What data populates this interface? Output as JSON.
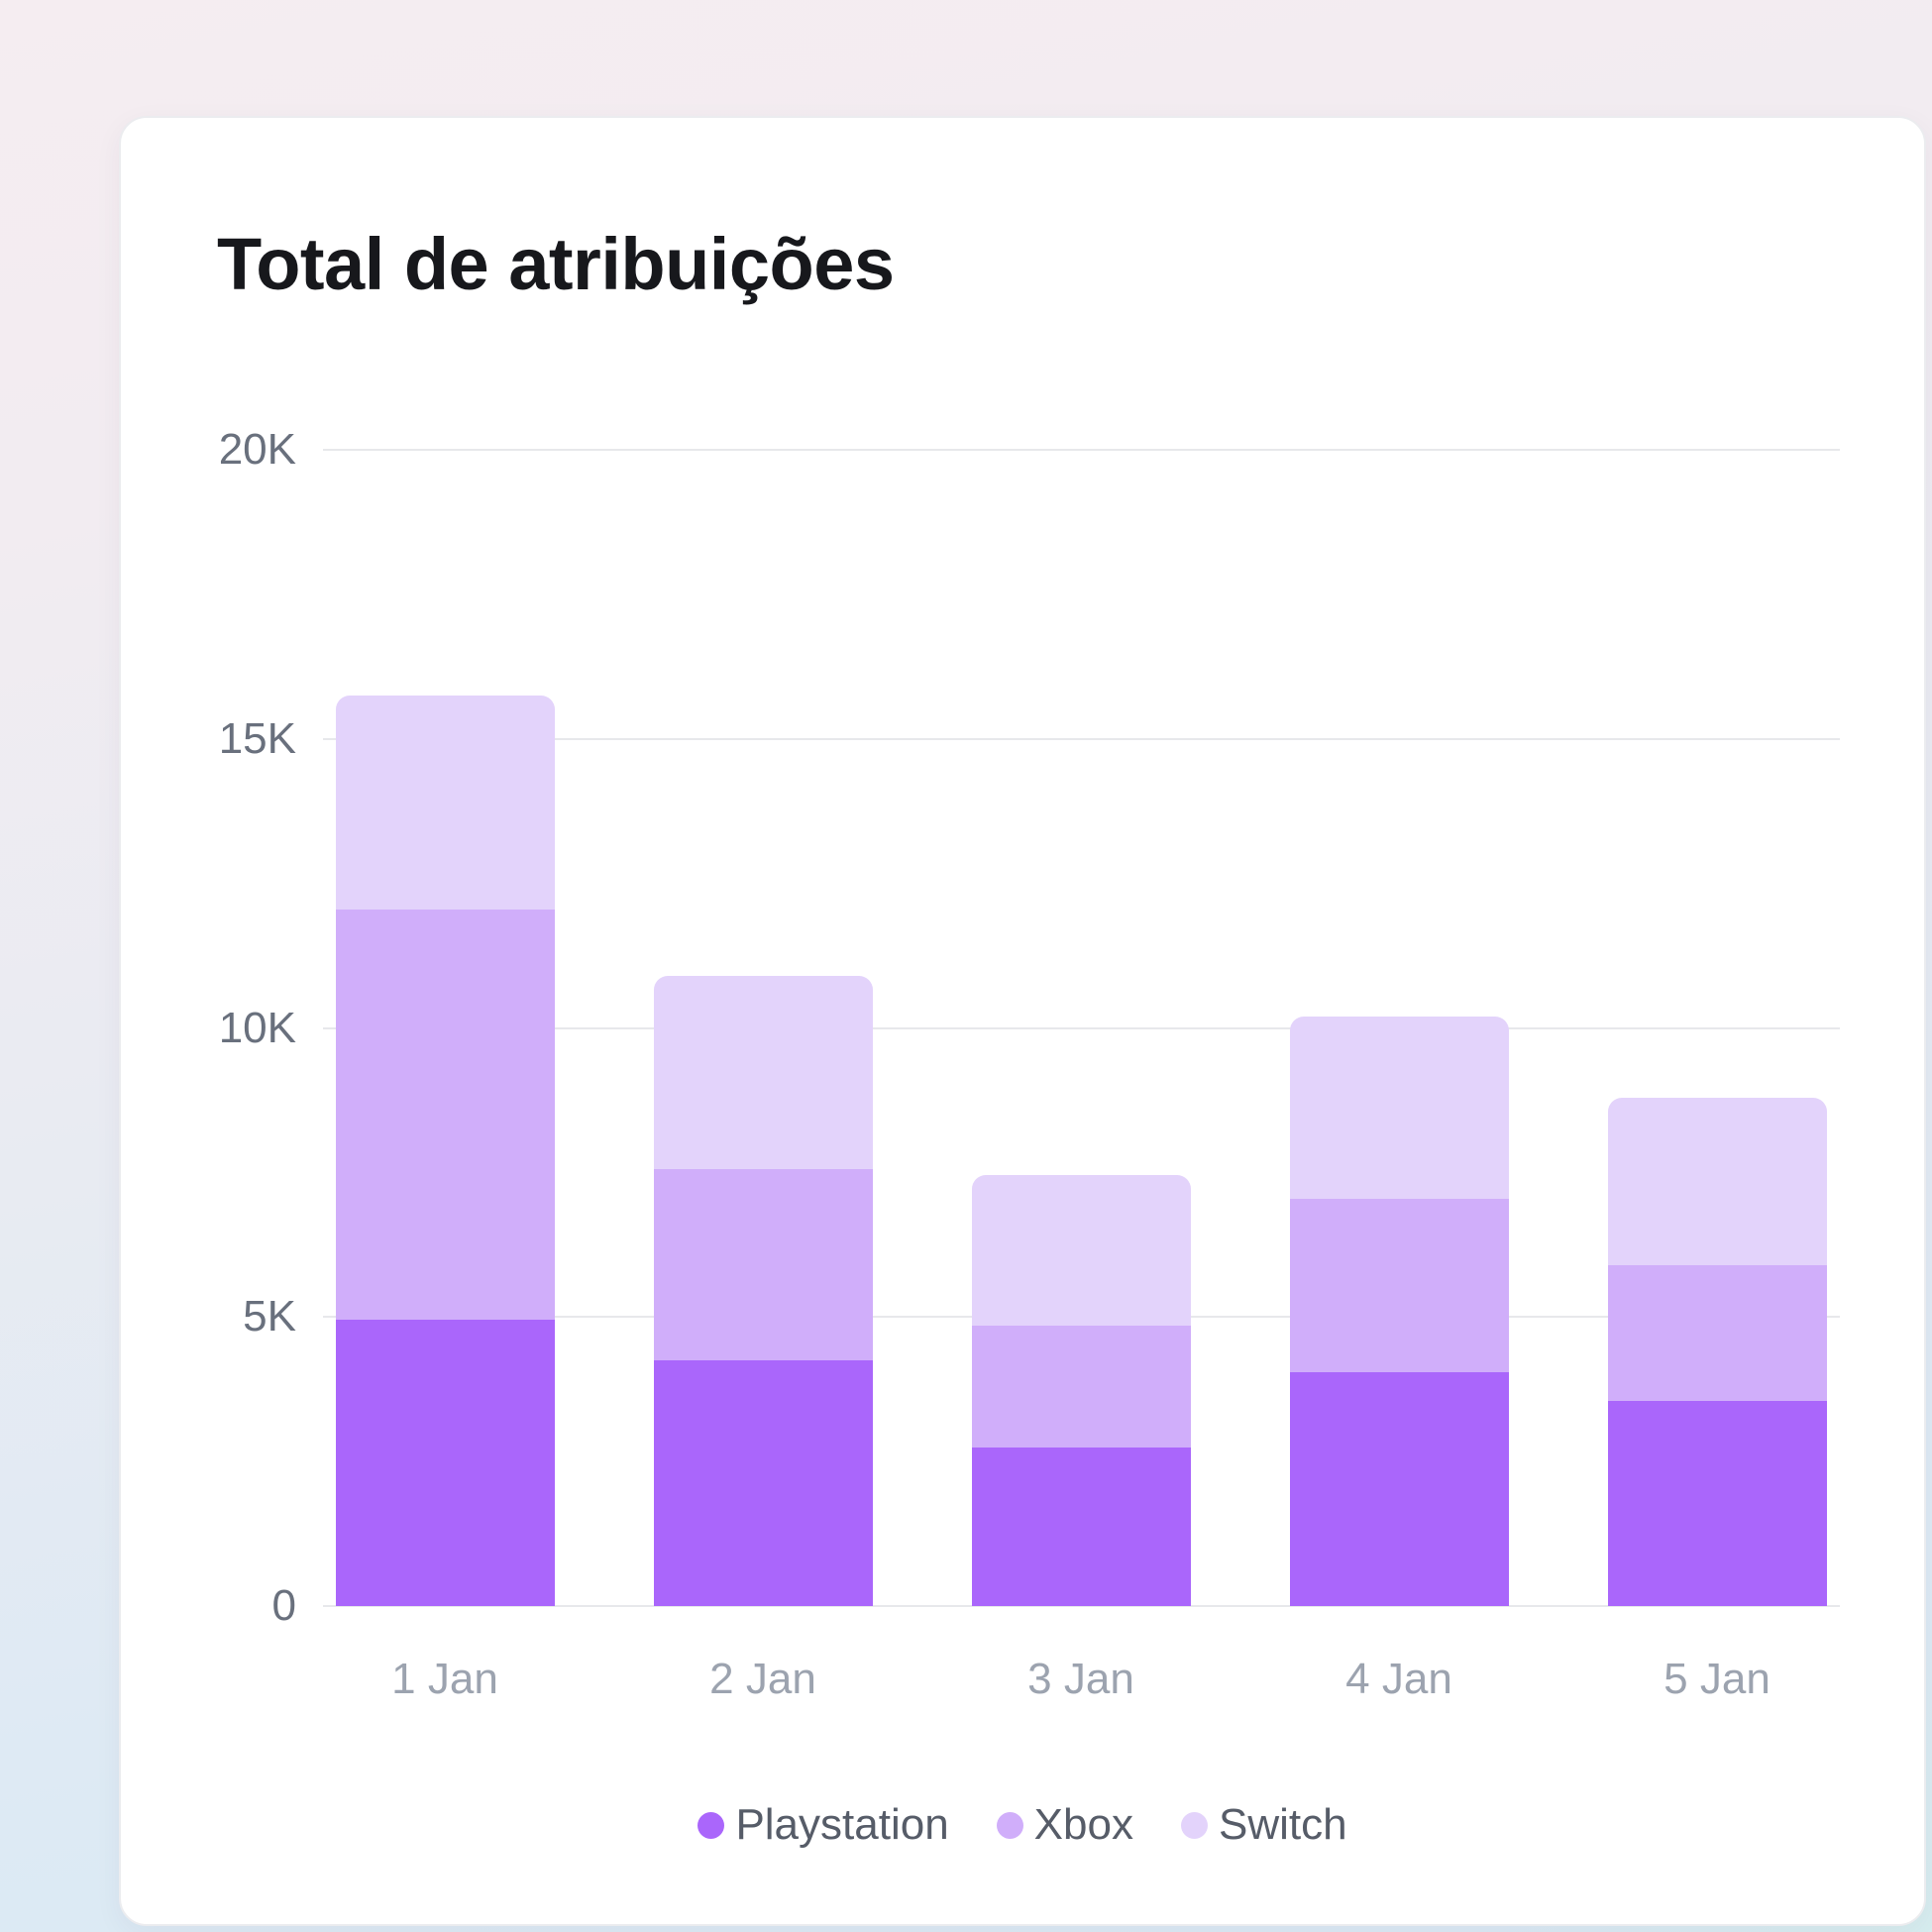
{
  "chart_data": {
    "type": "bar",
    "stacked": true,
    "title": "Total de atribuições",
    "categories": [
      "1 Jan",
      "2 Jan",
      "3 Jan",
      "4 Jan",
      "5 Jan"
    ],
    "series": [
      {
        "name": "Playstation",
        "color": "#aa66fb",
        "values": [
          4950,
          4250,
          2750,
          4050,
          3550
        ]
      },
      {
        "name": "Xbox",
        "color": "#d0aefa",
        "values": [
          7100,
          3300,
          2100,
          3000,
          2350
        ]
      },
      {
        "name": "Switch",
        "color": "#e3d3fb",
        "values": [
          3700,
          3350,
          2600,
          3150,
          2900
        ]
      }
    ],
    "ylim": [
      0,
      20000
    ],
    "yticks": [
      {
        "value": 0,
        "label": "0"
      },
      {
        "value": 5000,
        "label": "5K"
      },
      {
        "value": 10000,
        "label": "10K"
      },
      {
        "value": 15000,
        "label": "15K"
      },
      {
        "value": 20000,
        "label": "20K"
      }
    ],
    "grid": true,
    "legend_position": "bottom"
  }
}
